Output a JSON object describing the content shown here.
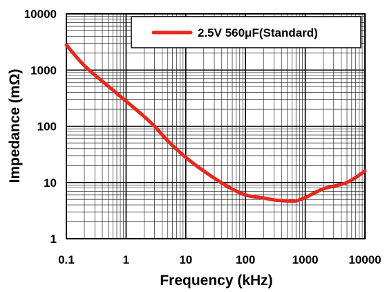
{
  "chart_data": {
    "type": "line",
    "xscale": "log",
    "yscale": "log",
    "xlim": [
      0.1,
      10000
    ],
    "ylim": [
      1,
      10000
    ],
    "grid": true,
    "legend_position": "top-right",
    "xlabel": "Frequency  (kHz)",
    "ylabel": "Impedance  (mΩ)",
    "x_ticks": [
      "0.1",
      "1",
      "10",
      "100",
      "1000",
      "10000"
    ],
    "y_ticks": [
      "1",
      "10",
      "100",
      "1000",
      "10000"
    ],
    "colors": {
      "series": "#e8281e",
      "grid": "#000000"
    },
    "series": [
      {
        "name": "2.5V 560μF(Standard)",
        "x": [
          0.1,
          0.2,
          0.5,
          1,
          2,
          3,
          5,
          10,
          20,
          50,
          100,
          200,
          300,
          500,
          700,
          1000,
          2000,
          5000,
          10000
        ],
        "y": [
          2800,
          1200,
          520,
          280,
          150,
          100,
          55,
          28,
          16,
          8.5,
          6.0,
          5.3,
          4.9,
          4.7,
          4.7,
          5.4,
          7.7,
          10,
          16
        ]
      }
    ]
  }
}
